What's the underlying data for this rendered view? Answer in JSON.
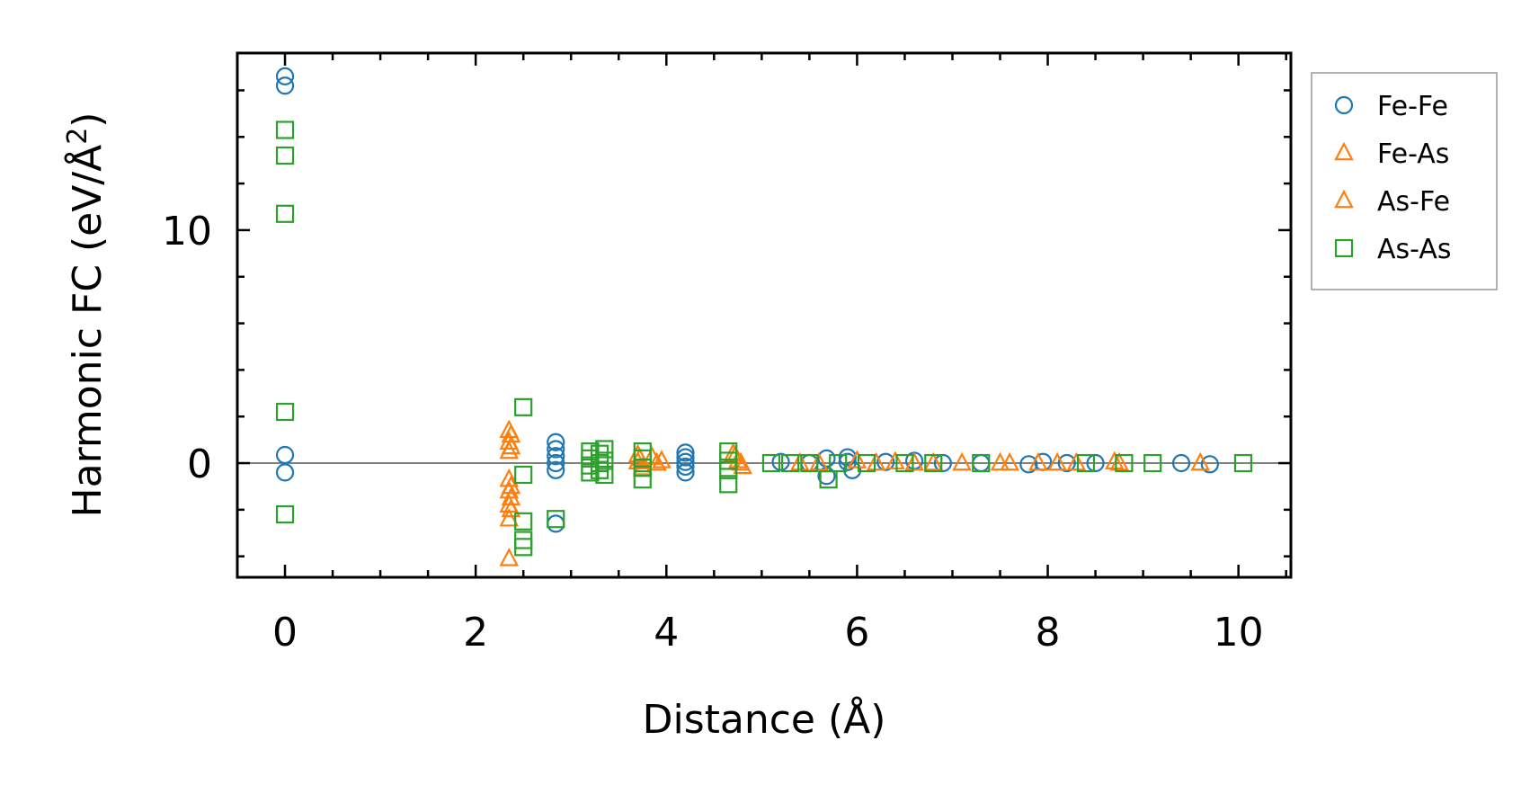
{
  "chart_data": {
    "type": "scatter",
    "xlabel": "Distance (Å)",
    "ylabel_main": "Harmonic FC (eV/Å",
    "ylabel_sup": "2",
    "ylabel_close": ")",
    "xlim": [
      -0.5,
      10.55
    ],
    "ylim": [
      -4.9,
      17.6
    ],
    "xticks": [
      0,
      2,
      4,
      6,
      8,
      10
    ],
    "xtick_labels": [
      "0",
      "2",
      "4",
      "6",
      "8",
      "10"
    ],
    "yticks": [
      0,
      10
    ],
    "ytick_labels": [
      "0",
      "10"
    ],
    "x_minor_step": 0.5,
    "y_minor_step": 2,
    "zero_line": true,
    "grid": false,
    "legend_position": "outside-right-top",
    "series": [
      {
        "name": "Fe-Fe",
        "marker": "circle",
        "color": "#1f77b4",
        "points": [
          [
            0,
            16.6
          ],
          [
            0,
            16.2
          ],
          [
            0,
            0.35
          ],
          [
            0,
            -0.4
          ],
          [
            2.84,
            0.9
          ],
          [
            2.84,
            0.6
          ],
          [
            2.84,
            0.3
          ],
          [
            2.84,
            0.0
          ],
          [
            2.84,
            -0.3
          ],
          [
            2.84,
            -2.6
          ],
          [
            4.2,
            0.45
          ],
          [
            4.2,
            0.25
          ],
          [
            4.2,
            0.05
          ],
          [
            4.2,
            -0.15
          ],
          [
            4.2,
            -0.4
          ],
          [
            5.2,
            0.05
          ],
          [
            5.5,
            0.0
          ],
          [
            5.68,
            0.2
          ],
          [
            5.68,
            -0.55
          ],
          [
            5.9,
            0.25
          ],
          [
            5.9,
            0.05
          ],
          [
            5.95,
            -0.3
          ],
          [
            6.3,
            0.05
          ],
          [
            6.6,
            0.1
          ],
          [
            6.9,
            0.0
          ],
          [
            7.3,
            0.0
          ],
          [
            7.8,
            -0.05
          ],
          [
            7.95,
            0.05
          ],
          [
            8.2,
            0.0
          ],
          [
            8.5,
            0.0
          ],
          [
            9.4,
            0.0
          ],
          [
            9.7,
            -0.05
          ]
        ]
      },
      {
        "name": "Fe-As",
        "marker": "triangle",
        "color": "#ff7f0e",
        "points": [
          [
            2.35,
            1.4
          ],
          [
            2.35,
            0.9
          ],
          [
            2.35,
            0.5
          ],
          [
            2.35,
            -0.7
          ],
          [
            2.35,
            -1.2
          ],
          [
            2.35,
            -1.8
          ],
          [
            2.35,
            -2.4
          ],
          [
            2.35,
            -4.1
          ],
          [
            3.7,
            0.35
          ],
          [
            3.7,
            0.05
          ],
          [
            3.75,
            -0.2
          ],
          [
            3.85,
            0.25
          ],
          [
            3.9,
            0.0
          ],
          [
            4.7,
            0.4
          ],
          [
            4.75,
            0.1
          ],
          [
            4.8,
            -0.15
          ],
          [
            5.4,
            0.0
          ],
          [
            6.0,
            0.1
          ],
          [
            6.4,
            0.05
          ],
          [
            6.6,
            0.0
          ],
          [
            7.1,
            0.0
          ],
          [
            7.5,
            0.0
          ],
          [
            7.9,
            0.0
          ],
          [
            8.1,
            0.0
          ],
          [
            8.7,
            0.05
          ],
          [
            9.6,
            0.0
          ]
        ]
      },
      {
        "name": "As-Fe",
        "marker": "triangle",
        "color": "#ff7f0e",
        "points": [
          [
            2.37,
            1.2
          ],
          [
            2.37,
            0.7
          ],
          [
            2.37,
            -1.0
          ],
          [
            2.37,
            -1.5
          ],
          [
            2.37,
            -2.0
          ],
          [
            3.72,
            0.2
          ],
          [
            3.95,
            0.1
          ],
          [
            4.72,
            0.3
          ],
          [
            4.78,
            0.0
          ],
          [
            5.6,
            0.0
          ],
          [
            6.2,
            0.0
          ],
          [
            6.8,
            0.0
          ],
          [
            7.6,
            0.0
          ],
          [
            8.3,
            0.0
          ],
          [
            8.75,
            0.0
          ]
        ]
      },
      {
        "name": "As-As",
        "marker": "square",
        "color": "#2ca02c",
        "points": [
          [
            0,
            14.3
          ],
          [
            0,
            13.2
          ],
          [
            0,
            10.7
          ],
          [
            0,
            2.2
          ],
          [
            0,
            -2.2
          ],
          [
            2.5,
            2.4
          ],
          [
            2.5,
            -0.5
          ],
          [
            2.5,
            -2.5
          ],
          [
            2.5,
            -3.3
          ],
          [
            2.5,
            -3.6
          ],
          [
            2.84,
            -2.4
          ],
          [
            3.2,
            0.5
          ],
          [
            3.2,
            0.2
          ],
          [
            3.2,
            -0.1
          ],
          [
            3.2,
            -0.4
          ],
          [
            3.3,
            0.4
          ],
          [
            3.3,
            0.0
          ],
          [
            3.3,
            -0.3
          ],
          [
            3.35,
            0.6
          ],
          [
            3.35,
            0.1
          ],
          [
            3.35,
            -0.5
          ],
          [
            3.75,
            0.5
          ],
          [
            3.75,
            0.2
          ],
          [
            3.75,
            -0.2
          ],
          [
            3.75,
            -0.7
          ],
          [
            4.65,
            0.5
          ],
          [
            4.65,
            0.1
          ],
          [
            4.65,
            -0.3
          ],
          [
            4.65,
            -0.9
          ],
          [
            5.1,
            0.0
          ],
          [
            5.3,
            0.0
          ],
          [
            5.5,
            0.0
          ],
          [
            5.7,
            -0.7
          ],
          [
            5.8,
            0.0
          ],
          [
            6.1,
            0.0
          ],
          [
            6.5,
            0.0
          ],
          [
            6.8,
            0.0
          ],
          [
            7.3,
            0.0
          ],
          [
            8.4,
            0.0
          ],
          [
            8.8,
            0.0
          ],
          [
            9.1,
            0.0
          ],
          [
            10.05,
            0.0
          ]
        ]
      }
    ]
  }
}
